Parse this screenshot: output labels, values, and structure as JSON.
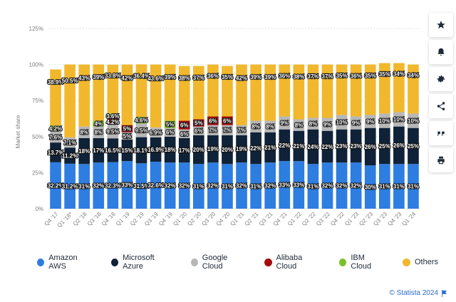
{
  "colors": {
    "aws": "#2e7de1",
    "azure": "#0f2237",
    "google": "#b7b7b7",
    "alibaba": "#a50c0c",
    "ibm": "#7bbf2a",
    "others": "#f1b82d",
    "grid": "#e3e3e3",
    "axis_text": "#7d7d7d"
  },
  "toolbar": {
    "icons": [
      "star-icon",
      "bell-icon",
      "gear-icon",
      "share-icon",
      "quote-icon",
      "print-icon"
    ]
  },
  "credit": {
    "text": "© Statista 2024"
  },
  "chart_data": {
    "type": "bar",
    "stacked": true,
    "title": "",
    "xlabel": "",
    "ylabel": "Market share",
    "ylim": [
      0,
      125
    ],
    "yticks": [
      0,
      25,
      50,
      75,
      100,
      125
    ],
    "ytick_labels": [
      "0%",
      "25%",
      "50%",
      "75%",
      "100%",
      "125%"
    ],
    "grid": true,
    "legend_position": "bottom",
    "categories": [
      "Q4 '17",
      "Q1 '18*",
      "Q2 '18",
      "Q3 '18",
      "Q4 '18",
      "Q1 '19",
      "Q2 '19",
      "Q3 '19",
      "Q4 '19",
      "Q1 '20",
      "Q2 '20",
      "Q3 '20",
      "Q4 '20",
      "Q1 '21",
      "Q2 '21",
      "Q3 '21",
      "Q4 '21",
      "Q1 '22",
      "Q2 '22",
      "Q3 '22",
      "Q4 '22",
      "Q1 '23",
      "Q2 '23",
      "Q3 '23",
      "Q4 '23",
      "Q1 '24"
    ],
    "series": [
      {
        "key": "aws",
        "name": "Amazon AWS",
        "values": [
          32.2,
          31.2,
          31,
          32,
          32.3,
          33,
          31.5,
          32.6,
          32,
          32,
          31,
          32,
          31,
          32,
          31,
          32,
          33,
          33,
          31,
          32,
          32,
          32,
          30,
          31,
          31,
          31
        ],
        "labels": [
          "32.2%",
          "31.2%",
          "31%",
          "32%",
          "32.3%",
          "33%",
          "31.5%",
          "32.6%",
          "32%",
          "32%",
          "31%",
          "32%",
          "31%",
          "32%",
          "31%",
          "32%",
          "33%",
          "33%",
          "31%",
          "32%",
          "32%",
          "32%",
          "30%",
          "31%",
          "31%",
          "31%"
        ]
      },
      {
        "key": "azure",
        "name": "Microsoft Azure",
        "values": [
          13.7,
          11.2,
          18,
          17,
          16.5,
          15,
          18.1,
          16.9,
          18,
          17,
          20,
          19,
          20,
          19,
          22,
          21,
          22,
          21,
          24,
          22,
          23,
          23,
          26,
          25,
          26,
          25
        ],
        "labels": [
          "13.7%",
          "11.2%",
          "18%",
          "17%",
          "16.5%",
          "15%",
          "18.1%",
          "16.9%",
          "18%",
          "17%",
          "20%",
          "19%",
          "20%",
          "19%",
          "22%",
          "21%",
          "22%",
          "21%",
          "24%",
          "22%",
          "23%",
          "23%",
          "26%",
          "25%",
          "26%",
          "25%"
        ]
      },
      {
        "key": "google",
        "name": "Google Cloud",
        "values": [
          7.6,
          7.1,
          8,
          8,
          9.5,
          5,
          9.5,
          6.9,
          6,
          6,
          6,
          7,
          7,
          7,
          8,
          8,
          9,
          8,
          8,
          9,
          10,
          9,
          9,
          10,
          10,
          10
        ],
        "labels": [
          "7.6%",
          "7.1%",
          "8%",
          "8%",
          "9.5%",
          "5%",
          "9.5%",
          "6.9%",
          "6%",
          "6%",
          "6%",
          "7%",
          "7%",
          "7%",
          "8%",
          "8%",
          "9%",
          "8%",
          "8%",
          "9%",
          "10%",
          "9%",
          "9%",
          "10%",
          "10%",
          "10%"
        ]
      },
      {
        "key": "alibaba",
        "name": "Alibaba Cloud",
        "values": [
          0,
          0,
          0,
          0,
          4.2,
          5,
          0,
          0,
          0,
          6,
          5,
          6,
          6,
          0,
          0,
          0,
          0,
          0,
          0,
          0,
          0,
          0,
          0,
          0,
          0,
          0
        ],
        "labels": [
          "",
          "",
          "",
          "",
          "4.2%",
          "5%",
          "",
          "",
          "",
          "6%",
          "5%",
          "6%",
          "6%",
          "",
          "",
          "",
          "",
          "",
          "",
          "",
          "",
          "",
          "",
          "",
          "",
          ""
        ]
      },
      {
        "key": "ibm",
        "name": "IBM Cloud",
        "values": [
          4.2,
          0,
          0,
          4,
          3.6,
          0,
          4.6,
          0,
          5,
          0,
          0,
          0,
          0,
          0,
          0,
          0,
          0,
          0,
          0,
          0,
          0,
          0,
          0,
          0,
          0,
          0
        ],
        "labels": [
          "4.2%",
          "",
          "",
          "4%",
          "3.6%",
          "",
          "4.6%",
          "",
          "5%",
          "",
          "",
          "",
          "",
          "",
          "",
          "",
          "",
          "",
          "",
          "",
          "",
          "",
          "",
          "",
          "",
          ""
        ]
      },
      {
        "key": "others",
        "name": "Others",
        "values": [
          38.9,
          50.5,
          43,
          39,
          33.8,
          42,
          36.4,
          43.6,
          39,
          38,
          37,
          36,
          35,
          42,
          39,
          39,
          36,
          38,
          37,
          37,
          35,
          36,
          35,
          35,
          34,
          34
        ],
        "labels": [
          "38.9%",
          "50.5%",
          "43%",
          "39%",
          "33.8%",
          "42%",
          "36.4%",
          "43.6%",
          "39%",
          "38%",
          "37%",
          "36%",
          "35%",
          "42%",
          "39%",
          "39%",
          "36%",
          "38%",
          "37%",
          "37%",
          "35%",
          "36%",
          "35%",
          "35%",
          "34%",
          "34%"
        ]
      }
    ]
  }
}
